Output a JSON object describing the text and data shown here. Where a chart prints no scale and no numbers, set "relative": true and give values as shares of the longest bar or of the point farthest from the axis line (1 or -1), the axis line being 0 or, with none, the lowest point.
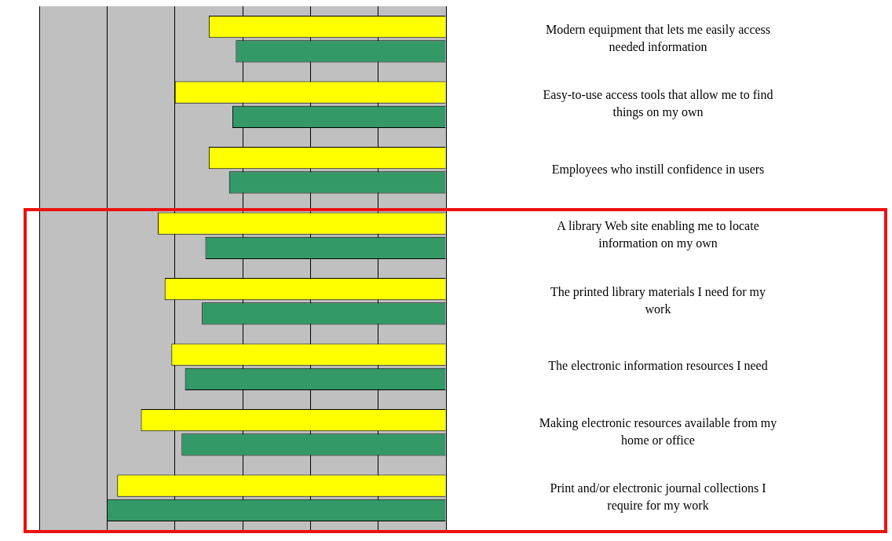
{
  "chart_data": {
    "type": "bar",
    "orientation": "horizontal",
    "relative": true,
    "grid": true,
    "legend": false,
    "categories": [
      "Modern equipment that lets me easily access needed information",
      "Easy-to-use access tools that allow me to find things on my own",
      "Employees who instill confidence in users",
      "A library Web site enabling me to locate information on my own",
      "The printed library materials I need for my work",
      "The electronic information resources I need",
      "Making electronic resources available from my home or office",
      "Print and/or electronic journal collections I require for my work"
    ],
    "series": [
      {
        "color": "#ffff00",
        "values": [
          0.7,
          0.8,
          0.7,
          0.85,
          0.83,
          0.81,
          0.9,
          0.97
        ]
      },
      {
        "color": "#339966",
        "values": [
          0.62,
          0.63,
          0.64,
          0.71,
          0.72,
          0.77,
          0.78,
          1.0
        ]
      }
    ]
  }
}
